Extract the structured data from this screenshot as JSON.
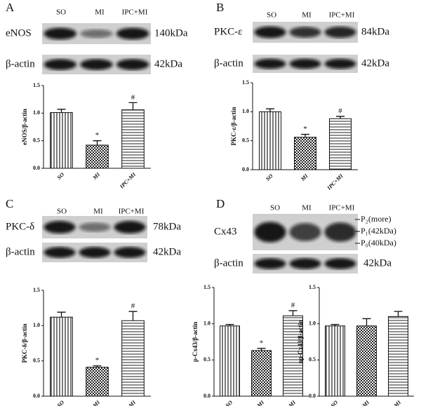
{
  "panels": [
    {
      "letter": "A",
      "lanes": [
        "SO",
        "MI",
        "IPC+MI"
      ],
      "blots": [
        {
          "protein": "eNOS",
          "size": "140kDa"
        },
        {
          "protein": "β-actin",
          "size": "42kDa"
        }
      ]
    },
    {
      "letter": "B",
      "lanes": [
        "SO",
        "MI",
        "IPC+MI"
      ],
      "blots": [
        {
          "protein": "PKC-ε",
          "size": "84kDa"
        },
        {
          "protein": "β-actin",
          "size": "42kDa"
        }
      ]
    },
    {
      "letter": "C",
      "lanes": [
        "SO",
        "MI",
        "IPC+MI"
      ],
      "blots": [
        {
          "protein": "PKC-δ",
          "size": "78kDa"
        },
        {
          "protein": "β-actin",
          "size": "42kDa"
        }
      ]
    },
    {
      "letter": "D",
      "lanes": [
        "SO",
        "MI",
        "IPC+MI"
      ],
      "blots": [
        {
          "protein": "Cx43",
          "bands": [
            "P₂(more)",
            "P₁(42kDa)",
            "P₀(40kDa)"
          ]
        },
        {
          "protein": "β-actin",
          "size": "42kDa"
        }
      ]
    }
  ],
  "chart_data": [
    {
      "type": "bar",
      "ylabel": "eNOS/β-actin",
      "categories": [
        "SO",
        "MI",
        "IPC+MI"
      ],
      "values": [
        1.01,
        0.42,
        1.06
      ],
      "errors": [
        0.06,
        0.08,
        0.13
      ],
      "annotations": [
        null,
        "*",
        "#"
      ],
      "ylim": [
        0,
        1.5
      ],
      "yticks": [
        {
          "value": 0,
          "label": "0.0"
        },
        {
          "value": 0.5,
          "label": "0.5"
        },
        {
          "value": 1,
          "label": "1.0"
        },
        {
          "value": 1.5,
          "label": "1.5"
        }
      ]
    },
    {
      "type": "bar",
      "ylabel": "PKC-ε/β-actin",
      "categories": [
        "SO",
        "MI",
        "IPC+MI"
      ],
      "values": [
        1.0,
        0.56,
        0.88
      ],
      "errors": [
        0.05,
        0.05,
        0.04
      ],
      "annotations": [
        null,
        "*",
        "#"
      ],
      "ylim": [
        0,
        1.5
      ],
      "yticks": [
        {
          "value": 0,
          "label": "0.0"
        },
        {
          "value": 0.5,
          "label": "0.5"
        },
        {
          "value": 1,
          "label": "1.0"
        },
        {
          "value": 1.5,
          "label": "1.5"
        }
      ]
    },
    {
      "type": "bar",
      "ylabel": "PKC-δ/β-actin",
      "categories": [
        "SO",
        "MI",
        "IPC+MI"
      ],
      "values": [
        1.12,
        0.41,
        1.07
      ],
      "errors": [
        0.07,
        0.02,
        0.13
      ],
      "annotations": [
        null,
        "*",
        "#"
      ],
      "ylim": [
        0,
        1.5
      ],
      "yticks": [
        {
          "value": 0,
          "label": "0.0"
        },
        {
          "value": 0.5,
          "label": "0.5"
        },
        {
          "value": 1,
          "label": "1.0"
        },
        {
          "value": 1.5,
          "label": "1.5"
        }
      ]
    },
    {
      "type": "bar",
      "ylabel": "p-Cx43/β-actin",
      "categories": [
        "SO",
        "MI",
        "IPC+MI"
      ],
      "values": [
        0.97,
        0.63,
        1.11
      ],
      "errors": [
        0.02,
        0.03,
        0.07
      ],
      "annotations": [
        null,
        "*",
        "#"
      ],
      "ylim": [
        0,
        1.5
      ],
      "yticks": [
        {
          "value": 0,
          "label": "0.0"
        },
        {
          "value": 0.5,
          "label": "0.5"
        },
        {
          "value": 1,
          "label": "1.0"
        },
        {
          "value": 1.5,
          "label": "1.5"
        }
      ]
    },
    {
      "type": "bar",
      "ylabel": "np-Cx43/β-actin",
      "categories": [
        "SO",
        "MI",
        "IPC+MI"
      ],
      "values": [
        0.97,
        0.97,
        1.1
      ],
      "errors": [
        0.02,
        0.1,
        0.07
      ],
      "ylim": [
        0,
        1.5
      ],
      "yticks": [
        {
          "value": 0,
          "label": "0.0"
        },
        {
          "value": 0.5,
          "label": "0.5"
        },
        {
          "value": 1,
          "label": "1.0"
        },
        {
          "value": 1.5,
          "label": "1.5"
        }
      ]
    }
  ]
}
